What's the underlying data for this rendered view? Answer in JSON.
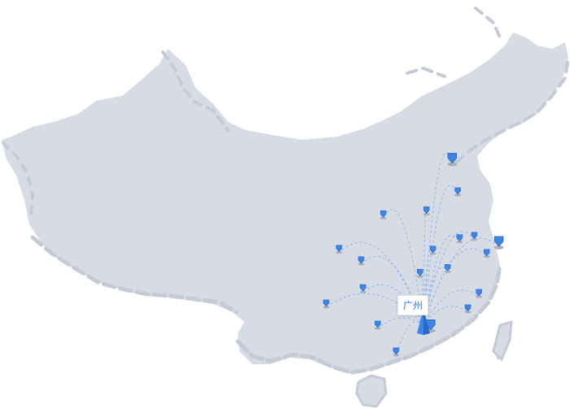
{
  "map": {
    "hub": {
      "name": "广州",
      "lon": 113.27,
      "lat": 23.13
    },
    "destinations": [
      {
        "lon": 121.47,
        "lat": 31.23,
        "large": true
      },
      {
        "lon": 116.4,
        "lat": 39.9,
        "large": true
      },
      {
        "lon": 120.15,
        "lat": 30.27
      },
      {
        "lon": 118.8,
        "lat": 32.06
      },
      {
        "lon": 117.2,
        "lat": 31.8
      },
      {
        "lon": 114.3,
        "lat": 30.6
      },
      {
        "lon": 119.3,
        "lat": 26.1
      },
      {
        "lon": 118.1,
        "lat": 24.5
      },
      {
        "lon": 115.9,
        "lat": 28.7
      },
      {
        "lon": 112.9,
        "lat": 28.2
      },
      {
        "lon": 106.5,
        "lat": 29.5
      },
      {
        "lon": 104.1,
        "lat": 30.7
      },
      {
        "lon": 108.9,
        "lat": 34.3
      },
      {
        "lon": 106.7,
        "lat": 26.6
      },
      {
        "lon": 102.7,
        "lat": 25.0
      },
      {
        "lon": 108.3,
        "lat": 22.8
      },
      {
        "lon": 110.3,
        "lat": 20.0
      },
      {
        "lon": 114.06,
        "lat": 22.54,
        "large": true
      },
      {
        "lon": 117.0,
        "lat": 36.7
      },
      {
        "lon": 113.6,
        "lat": 34.7
      }
    ],
    "colors": {
      "land": "#d7dbe4",
      "coast": "#c4cad6",
      "line": "#8db8ec",
      "marker": "#3d86e8",
      "marker_dark": "#2a67c9"
    },
    "icons": {
      "marker": "map-pin-icon",
      "hub_marker": "hub-marker-icon"
    }
  }
}
